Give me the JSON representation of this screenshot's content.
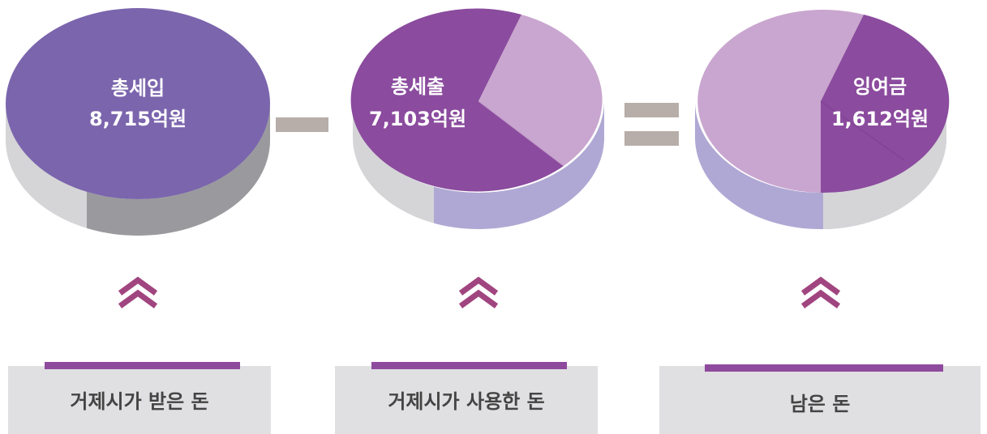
{
  "items": [
    {
      "title": "총세입",
      "amount": "8,715억원",
      "caption": "거제시가 받은 돈"
    },
    {
      "title": "총세출",
      "amount": "7,103억원",
      "caption": "거제시가 사용한 돈"
    },
    {
      "title": "잉여금",
      "amount": "1,612억원",
      "caption": "남은 돈"
    }
  ]
}
